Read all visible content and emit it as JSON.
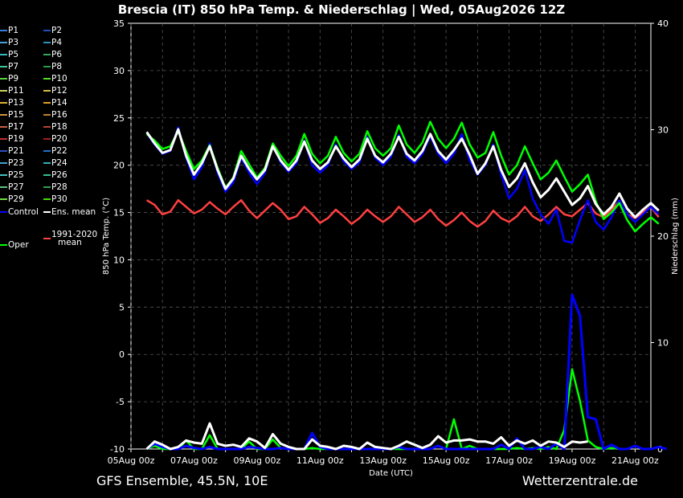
{
  "header": {
    "title": "Brescia  (IT)  850 hPa Temp. & Niederschlag | Wed, 05Aug2026 12Z"
  },
  "footer": {
    "left": "GFS Ensemble, 45.5N, 10E",
    "right": "Wetterzentrale.de"
  },
  "legend": {
    "entries": [
      {
        "label": "P1",
        "color": "#3a7bd5"
      },
      {
        "label": "P2",
        "color": "#1f4fb5"
      },
      {
        "label": "P3",
        "color": "#4a9fd8"
      },
      {
        "label": "P4",
        "color": "#2f8fc0"
      },
      {
        "label": "P5",
        "color": "#38b8c0"
      },
      {
        "label": "P6",
        "color": "#30a860"
      },
      {
        "label": "P7",
        "color": "#40c8a0"
      },
      {
        "label": "P8",
        "color": "#2a9a50"
      },
      {
        "label": "P9",
        "color": "#5ad040"
      },
      {
        "label": "P10",
        "color": "#50e020"
      },
      {
        "label": "P11",
        "color": "#c8d060"
      },
      {
        "label": "P12",
        "color": "#d0c040"
      },
      {
        "label": "P13",
        "color": "#e0b030"
      },
      {
        "label": "P14",
        "color": "#e0a020"
      },
      {
        "label": "P15",
        "color": "#d09040"
      },
      {
        "label": "P16",
        "color": "#c08030"
      },
      {
        "label": "P17",
        "color": "#c86040"
      },
      {
        "label": "P18",
        "color": "#b84030"
      },
      {
        "label": "P19",
        "color": "#c03030"
      },
      {
        "label": "P20",
        "color": "#a02020"
      },
      {
        "label": "P21",
        "color": "#2a50c0"
      },
      {
        "label": "P22",
        "color": "#2070c8"
      },
      {
        "label": "P23",
        "color": "#40a0d0"
      },
      {
        "label": "P24",
        "color": "#30b0b8"
      },
      {
        "label": "P25",
        "color": "#40c0c0"
      },
      {
        "label": "P26",
        "color": "#30c090"
      },
      {
        "label": "P27",
        "color": "#60c080"
      },
      {
        "label": "P28",
        "color": "#30a050"
      },
      {
        "label": "P29",
        "color": "#70e040"
      },
      {
        "label": "P30",
        "color": "#40e000"
      },
      {
        "label": "Control",
        "color": "#0000ff"
      },
      {
        "label": "Ens. mean",
        "color": "#ffffff"
      },
      {
        "label": "Oper",
        "color": "#00ff00"
      },
      {
        "label": "1991-2020",
        "label2": "mean",
        "color": "#ff4040"
      }
    ]
  },
  "chart_data": {
    "type": "line",
    "title": "Brescia  (IT)  850 hPa Temp. & Niederschlag | Wed, 05Aug2026 12Z",
    "xlabel": "Date (UTC)",
    "ylabel": "850 hPa Temp. (°C)",
    "y2label": "Niederschlag (mm)",
    "x_start": "05Aug2026 00z",
    "x_step_hours": 6,
    "x_end": "21Aug2026 12z",
    "x_ticks": [
      "05Aug 00z",
      "07Aug 00z",
      "09Aug 00z",
      "11Aug 00z",
      "13Aug 00z",
      "15Aug 00z",
      "17Aug 00z",
      "19Aug 00z",
      "21Aug 00z"
    ],
    "ylim": [
      -10,
      35
    ],
    "y_ticks": [
      -10,
      -5,
      0,
      5,
      10,
      15,
      20,
      25,
      30,
      35
    ],
    "y2lim": [
      0,
      40
    ],
    "y2_ticks": [
      0,
      10,
      20,
      30,
      40
    ],
    "grid": true,
    "temperature_series_start": "05Aug2026 12z",
    "series": [
      {
        "name": "Ens. mean",
        "color": "#ffffff",
        "values": [
          23.5,
          22.3,
          21.3,
          21.6,
          23.8,
          21.0,
          19.0,
          20.2,
          22.0,
          19.5,
          17.5,
          18.6,
          21.0,
          19.6,
          18.5,
          19.5,
          22.0,
          20.5,
          19.5,
          20.5,
          22.5,
          20.5,
          19.6,
          20.3,
          22.0,
          20.7,
          19.8,
          20.6,
          22.8,
          21.0,
          20.3,
          21.2,
          23.0,
          21.2,
          20.5,
          21.5,
          23.3,
          21.5,
          20.6,
          21.6,
          22.8,
          21.1,
          19.1,
          20.2,
          22.0,
          19.5,
          17.7,
          18.6,
          20.2,
          18.2,
          16.6,
          17.4,
          18.6,
          17.2,
          15.8,
          16.5,
          17.8,
          15.9,
          14.8,
          15.6,
          17.0,
          15.4,
          14.5,
          15.3,
          16.0,
          15.2
        ]
      },
      {
        "name": "Control",
        "color": "#0000ff",
        "values": [
          23.4,
          22.2,
          21.2,
          21.5,
          24.0,
          20.8,
          18.5,
          19.8,
          22.3,
          19.2,
          17.2,
          18.2,
          20.8,
          19.2,
          18.0,
          19.2,
          22.2,
          20.3,
          19.3,
          20.2,
          22.6,
          20.0,
          19.2,
          20.0,
          22.2,
          20.4,
          19.6,
          20.3,
          23.0,
          20.8,
          20.0,
          20.9,
          23.2,
          20.9,
          20.2,
          21.2,
          23.1,
          21.2,
          20.2,
          21.2,
          23.3,
          20.5,
          19.0,
          20.0,
          22.2,
          19.0,
          16.5,
          17.5,
          19.5,
          16.5,
          14.8,
          13.8,
          15.3,
          12.0,
          11.8,
          14.2,
          16.3,
          14.0,
          13.2,
          14.5,
          16.3,
          14.8,
          14.0,
          14.8,
          15.6,
          14.8
        ]
      },
      {
        "name": "Oper",
        "color": "#00ff00",
        "values": [
          23.3,
          22.6,
          21.7,
          22.0,
          23.6,
          21.5,
          19.6,
          20.5,
          22.1,
          19.7,
          17.6,
          18.7,
          21.5,
          20.1,
          18.7,
          19.7,
          22.3,
          21.0,
          19.9,
          21.0,
          23.3,
          21.2,
          20.2,
          21.0,
          23.0,
          21.3,
          20.4,
          21.2,
          23.6,
          21.8,
          21.0,
          21.8,
          24.2,
          22.2,
          21.3,
          22.4,
          24.6,
          22.8,
          21.8,
          22.8,
          24.5,
          22.2,
          20.8,
          21.3,
          23.5,
          21.0,
          19.0,
          20.0,
          22.0,
          20.2,
          18.5,
          19.2,
          20.5,
          18.8,
          17.2,
          18.0,
          19.0,
          16.2,
          14.3,
          15.0,
          16.0,
          14.2,
          13.0,
          13.8,
          14.5,
          13.8
        ]
      },
      {
        "name": "1991-2020 mean",
        "color": "#ff4040",
        "values": [
          16.3,
          15.8,
          14.8,
          15.1,
          16.3,
          15.6,
          14.9,
          15.3,
          16.1,
          15.4,
          14.8,
          15.6,
          16.3,
          15.2,
          14.4,
          15.2,
          16.0,
          15.3,
          14.3,
          14.6,
          15.6,
          14.8,
          13.9,
          14.4,
          15.3,
          14.6,
          13.8,
          14.4,
          15.3,
          14.6,
          14.0,
          14.6,
          15.6,
          14.8,
          14.0,
          14.5,
          15.3,
          14.3,
          13.6,
          14.2,
          15.0,
          14.1,
          13.5,
          14.1,
          15.2,
          14.4,
          14.0,
          14.6,
          15.6,
          14.6,
          14.1,
          14.8,
          15.6,
          14.8,
          14.6,
          15.3,
          16.0,
          14.9,
          14.5,
          15.3,
          16.2,
          14.8,
          14.4,
          15.0,
          15.6,
          14.5
        ]
      }
    ],
    "precip_series": [
      {
        "name": "Ens. mean",
        "color": "#ffffff",
        "values": [
          0.0,
          0.7,
          0.4,
          0.0,
          0.2,
          0.8,
          0.6,
          0.5,
          2.4,
          0.5,
          0.3,
          0.4,
          0.2,
          1.0,
          0.7,
          0.1,
          1.4,
          0.5,
          0.2,
          0.0,
          0.0,
          0.9,
          0.3,
          0.2,
          0.0,
          0.3,
          0.2,
          0.0,
          0.6,
          0.2,
          0.1,
          0.0,
          0.3,
          0.7,
          0.4,
          0.1,
          0.4,
          1.2,
          0.6,
          0.8,
          0.8,
          0.9,
          0.7,
          0.7,
          0.5,
          1.1,
          0.3,
          0.8,
          0.5,
          0.8,
          0.3,
          0.7,
          0.6,
          0.2,
          0.7,
          0.6,
          0.7
        ]
      },
      {
        "name": "Control",
        "color": "#0000ff",
        "values": [
          0.0,
          0.5,
          0.2,
          0.0,
          0.0,
          0.3,
          0.1,
          0.0,
          0.2,
          0.0,
          0.0,
          0.0,
          0.0,
          0.2,
          0.1,
          0.0,
          0.0,
          0.1,
          0.0,
          0.0,
          0.0,
          1.5,
          0.2,
          0.0,
          0.0,
          0.0,
          0.0,
          0.0,
          0.0,
          0.0,
          0.0,
          0.0,
          0.2,
          0.0,
          0.0,
          0.0,
          0.0,
          0.3,
          0.0,
          0.0,
          0.0,
          0.0,
          0.0,
          0.0,
          0.0,
          0.4,
          0.0,
          1.0,
          0.0,
          0.0,
          0.2,
          0.0,
          0.5,
          0.0,
          14.5,
          12.5,
          3.0,
          2.8,
          0.0,
          0.4,
          0.0,
          0.0,
          0.3,
          0.0,
          0.0,
          0.2,
          0.0
        ]
      },
      {
        "name": "Oper",
        "color": "#00ff00",
        "values": [
          0.0,
          0.3,
          0.0,
          0.0,
          0.0,
          0.8,
          0.0,
          0.0,
          1.3,
          0.0,
          0.0,
          0.0,
          0.0,
          0.7,
          0.0,
          0.0,
          0.9,
          0.1,
          0.0,
          0.0,
          0.0,
          0.1,
          0.0,
          0.0,
          0.0,
          0.0,
          0.0,
          0.0,
          0.0,
          0.0,
          0.0,
          0.0,
          0.0,
          0.0,
          0.0,
          0.0,
          0.0,
          0.3,
          0.0,
          2.8,
          0.0,
          0.3,
          0.0,
          0.0,
          0.0,
          0.0,
          0.0,
          0.1,
          0.0,
          0.1,
          0.0,
          0.2,
          0.0,
          1.8,
          7.5,
          4.5,
          0.8,
          0.2,
          0.0,
          0.1,
          0.0
        ]
      }
    ],
    "members_note": ""
  }
}
